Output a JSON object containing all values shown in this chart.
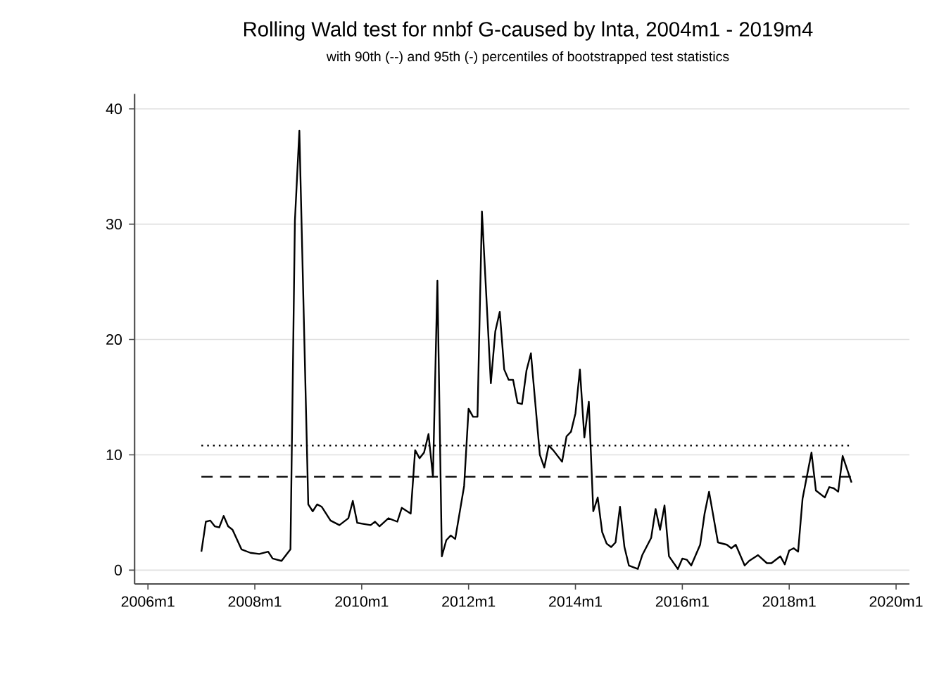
{
  "chart_data": {
    "type": "line",
    "title": "Rolling Wald test for nnbf G-caused by lnta, 2004m1 - 2019m4",
    "subtitle": "with 90th (--) and 95th (-) percentiles of bootstrapped test statistics",
    "xlim": [
      "2005-10",
      "2020-04"
    ],
    "ylim": [
      -1.2,
      41.3
    ],
    "xticks": [
      {
        "value": "2006-01",
        "label": "2006m1"
      },
      {
        "value": "2008-01",
        "label": "2008m1"
      },
      {
        "value": "2010-01",
        "label": "2010m1"
      },
      {
        "value": "2012-01",
        "label": "2012m1"
      },
      {
        "value": "2014-01",
        "label": "2014m1"
      },
      {
        "value": "2016-01",
        "label": "2016m1"
      },
      {
        "value": "2018-01",
        "label": "2018m1"
      },
      {
        "value": "2020-01",
        "label": "2020m1"
      }
    ],
    "yticks": [
      0,
      10,
      20,
      30,
      40
    ],
    "grid": "y",
    "marker": "none",
    "legend": false,
    "series": [
      {
        "color": "#000000",
        "line_style": "solid",
        "x": [
          "2007-01",
          "2007-02",
          "2007-03",
          "2007-04",
          "2007-05",
          "2007-06",
          "2007-07",
          "2007-08",
          "2007-10",
          "2007-12",
          "2008-02",
          "2008-04",
          "2008-05",
          "2008-07",
          "2008-09",
          "2008-10",
          "2008-11",
          "2009-01",
          "2009-02",
          "2009-03",
          "2009-04",
          "2009-06",
          "2009-08",
          "2009-10",
          "2009-11",
          "2009-12",
          "2010-03",
          "2010-04",
          "2010-05",
          "2010-07",
          "2010-09",
          "2010-10",
          "2010-12",
          "2011-01",
          "2011-02",
          "2011-03",
          "2011-04",
          "2011-05",
          "2011-06",
          "2011-07",
          "2011-08",
          "2011-09",
          "2011-10",
          "2011-12",
          "2012-01",
          "2012-02",
          "2012-03",
          "2012-04",
          "2012-06",
          "2012-07",
          "2012-08",
          "2012-09",
          "2012-10",
          "2012-11",
          "2012-12",
          "2013-01",
          "2013-02",
          "2013-03",
          "2013-05",
          "2013-06",
          "2013-07",
          "2013-08",
          "2013-10",
          "2013-11",
          "2013-12",
          "2014-01",
          "2014-02",
          "2014-03",
          "2014-04",
          "2014-05",
          "2014-06",
          "2014-07",
          "2014-08",
          "2014-09",
          "2014-10",
          "2014-11",
          "2014-12",
          "2015-01",
          "2015-03",
          "2015-04",
          "2015-06",
          "2015-07",
          "2015-08",
          "2015-09",
          "2015-10",
          "2015-12",
          "2016-01",
          "2016-02",
          "2016-03",
          "2016-05",
          "2016-06",
          "2016-07",
          "2016-09",
          "2016-11",
          "2016-12",
          "2017-01",
          "2017-03",
          "2017-04",
          "2017-06",
          "2017-08",
          "2017-09",
          "2017-11",
          "2017-12",
          "2018-01",
          "2018-02",
          "2018-03",
          "2018-04",
          "2018-06",
          "2018-07",
          "2018-09",
          "2018-10",
          "2018-11",
          "2018-12",
          "2019-01",
          "2019-03"
        ],
        "values": [
          1.6,
          4.2,
          4.3,
          3.8,
          3.7,
          4.7,
          3.8,
          3.5,
          1.8,
          1.5,
          1.4,
          1.6,
          1.0,
          0.8,
          1.8,
          30.3,
          38.1,
          5.7,
          5.1,
          5.7,
          5.5,
          4.3,
          3.9,
          4.5,
          6.0,
          4.1,
          3.9,
          4.2,
          3.8,
          4.5,
          4.2,
          5.4,
          4.9,
          10.4,
          9.7,
          10.2,
          11.8,
          8.1,
          25.1,
          1.2,
          2.6,
          3.0,
          2.7,
          7.3,
          14.0,
          13.3,
          13.3,
          31.1,
          16.2,
          20.7,
          22.4,
          17.4,
          16.5,
          16.5,
          14.5,
          14.4,
          17.3,
          18.8,
          10.0,
          8.9,
          10.8,
          10.4,
          9.4,
          11.6,
          12.0,
          13.6,
          17.4,
          11.5,
          14.6,
          5.1,
          6.3,
          3.3,
          2.3,
          2.0,
          2.4,
          5.5,
          2.0,
          0.4,
          0.1,
          1.3,
          2.8,
          5.3,
          3.5,
          5.6,
          1.2,
          0.1,
          1.0,
          0.9,
          0.4,
          2.2,
          4.9,
          6.8,
          2.4,
          2.2,
          1.9,
          2.2,
          0.4,
          0.8,
          1.3,
          0.6,
          0.6,
          1.2,
          0.5,
          1.7,
          1.9,
          1.6,
          6.2,
          10.2,
          6.9,
          6.3,
          7.2,
          7.1,
          6.8,
          9.9,
          7.6
        ]
      },
      {
        "color": "#000000",
        "line_style": "dotted",
        "x": [
          "2007-01",
          "2019-03"
        ],
        "values": [
          10.8,
          10.8
        ]
      },
      {
        "color": "#000000",
        "line_style": "dashed",
        "x": [
          "2007-01",
          "2019-03"
        ],
        "values": [
          8.1,
          8.1
        ]
      }
    ]
  }
}
